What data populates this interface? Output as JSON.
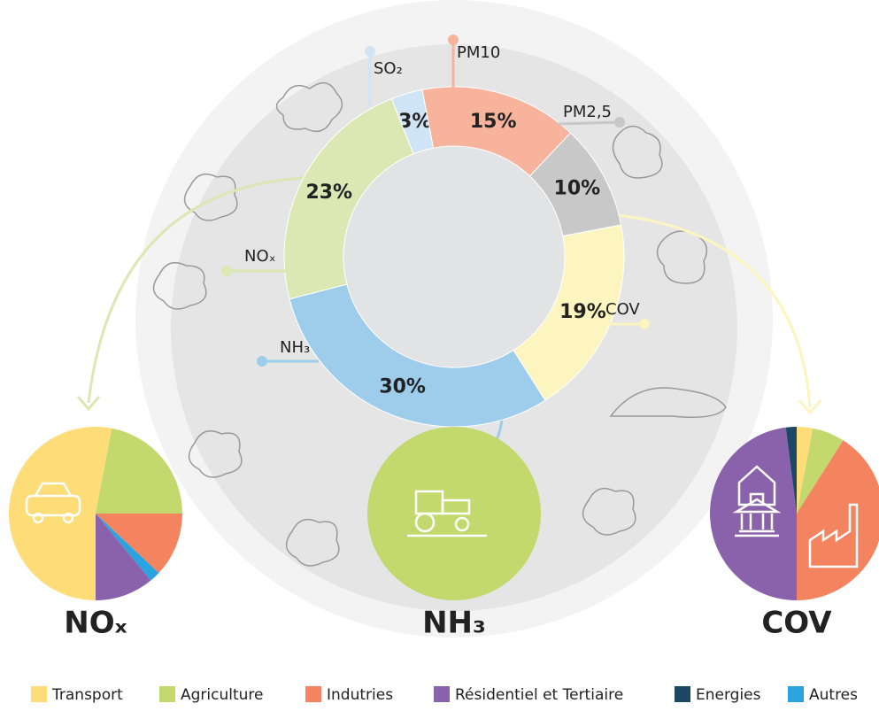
{
  "chart_data": [
    {
      "type": "donut",
      "categories": [
        "SO₂",
        "PM10",
        "PM2,5",
        "COV",
        "NH₃",
        "NOₓ"
      ],
      "values": [
        3,
        15,
        10,
        19,
        30,
        23
      ],
      "value_labels": [
        "3%",
        "15%",
        "10%",
        "19%",
        "30%",
        "23%"
      ],
      "colors": [
        "#cfe4f5",
        "#f7b39b",
        "#c8c8c8",
        "#fdf5bf",
        "#9ecdec",
        "#dbe8b3"
      ]
    },
    {
      "type": "pie",
      "title": "NOₓ",
      "categories": [
        "Transport",
        "Agriculture",
        "Indutries",
        "Autres",
        "Résidentiel et Tertiaire"
      ],
      "values": [
        53,
        22,
        12,
        2,
        11
      ]
    },
    {
      "type": "pie",
      "title": "NH₃",
      "categories": [
        "Agriculture"
      ],
      "values": [
        100
      ]
    },
    {
      "type": "pie",
      "title": "COV",
      "categories": [
        "Transport",
        "Agriculture",
        "Indutries",
        "Résidentiel et Tertiaire",
        "Energies"
      ],
      "values": [
        3,
        6,
        41,
        48,
        2
      ]
    }
  ],
  "legend": {
    "categories": [
      "Transport",
      "Agriculture",
      "Indutries",
      "Résidentiel et Tertiaire",
      "Energies",
      "Autres"
    ],
    "colors": [
      "#fedc78",
      "#c3d96e",
      "#f4845f",
      "#8a62ab",
      "#1c4863",
      "#2aa4e0"
    ]
  }
}
